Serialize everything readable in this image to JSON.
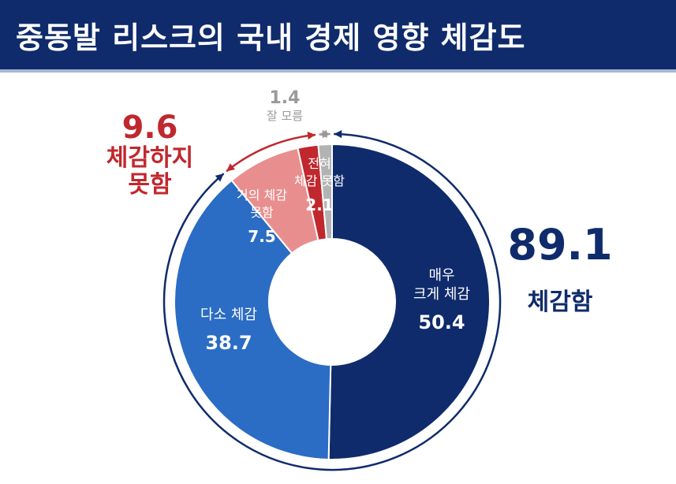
{
  "title": "중동발 리스크의 국내 경제 영향 체감도",
  "chart_data": {
    "type": "pie",
    "title": "중동발 리스크의 국내 경제 영향 체감도",
    "slices": [
      {
        "label": "매우 크게 체감",
        "label_lines": [
          "매우",
          "크게 체감"
        ],
        "value": 50.4,
        "value_text": "50.4",
        "color": "#0f2b6b",
        "label_color": "#ffffff"
      },
      {
        "label": "다소 체감",
        "label_lines": [
          "다소 체감"
        ],
        "value": 38.7,
        "value_text": "38.7",
        "color": "#2b6cc4",
        "label_color": "#ffffff"
      },
      {
        "label": "거의 체감 못함",
        "label_lines": [
          "거의 체감",
          "못함"
        ],
        "value": 7.5,
        "value_text": "7.5",
        "color": "#e98e8e",
        "label_color": "#ffffff"
      },
      {
        "label": "전혀 체감 못함",
        "label_lines": [
          "전혀",
          "체감 못함"
        ],
        "value": 2.1,
        "value_text": "2.1",
        "color": "#c0282e",
        "label_color": "#ffffff"
      },
      {
        "label": "잘 모름",
        "label_lines": [],
        "value": 1.4,
        "value_text": "",
        "color": "#b3b3b3",
        "label_color": "#ffffff"
      }
    ],
    "groups": [
      {
        "key": "pos",
        "value_text": "89.1",
        "label": "체감함",
        "color": "#0f2b6b"
      },
      {
        "key": "neg",
        "value_text": "9.6",
        "label": "체감하지 못함",
        "label_lines": [
          "체감하지",
          "못함"
        ],
        "color": "#c0282e"
      },
      {
        "key": "unk",
        "value_text": "1.4",
        "label": "잘 모름",
        "color": "#9a9a9a"
      }
    ]
  },
  "colors": {
    "title_bg": "#0f2b6b",
    "title_underline": "#a9b6d3",
    "positive": "#0f2b6b",
    "negative": "#c0282e",
    "unknown": "#9a9a9a"
  }
}
